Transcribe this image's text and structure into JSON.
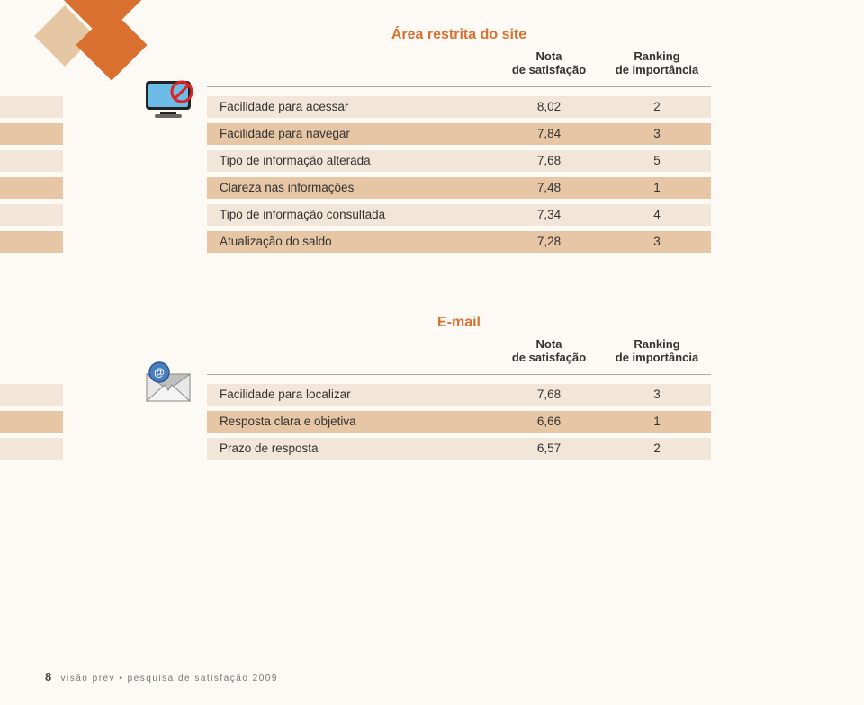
{
  "colors": {
    "band_a": "#f2e6d9",
    "band_b": "#e6c6a4",
    "accent": "#d97030",
    "text": "#333333"
  },
  "section1": {
    "title": "Área restrita do site",
    "head_left": "Nota\nde satisfação",
    "head_right": "Ranking\nde importância",
    "rows": [
      {
        "label": "Facilidade para acessar",
        "v1": "8,02",
        "v2": "2"
      },
      {
        "label": "Facilidade para navegar",
        "v1": "7,84",
        "v2": "3"
      },
      {
        "label": "Tipo de informação alterada",
        "v1": "7,68",
        "v2": "5"
      },
      {
        "label": "Clareza nas informações",
        "v1": "7,48",
        "v2": "1"
      },
      {
        "label": "Tipo de informação consultada",
        "v1": "7,34",
        "v2": "4"
      },
      {
        "label": "Atualização do saldo",
        "v1": "7,28",
        "v2": "3"
      }
    ]
  },
  "section2": {
    "title": "E-mail",
    "head_left": "Nota\nde satisfação",
    "head_right": "Ranking\nde importância",
    "rows": [
      {
        "label": "Facilidade para localizar",
        "v1": "7,68",
        "v2": "3"
      },
      {
        "label": "Resposta clara e objetiva",
        "v1": "6,66",
        "v2": "1"
      },
      {
        "label": "Prazo de resposta",
        "v1": "6,57",
        "v2": "2"
      }
    ]
  },
  "footer": {
    "page": "8",
    "text": "visão prev • pesquisa de satisfação 2009"
  }
}
